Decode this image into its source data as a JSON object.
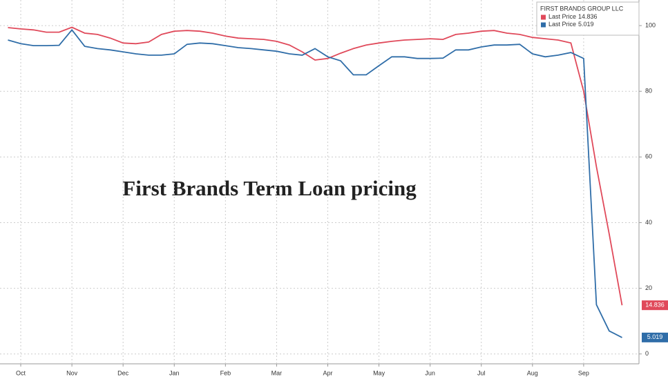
{
  "chart_data": {
    "type": "line",
    "annotation": "First Brands Term Loan pricing",
    "legend_title": "FIRST BRANDS GROUP LLC",
    "legend": "top-right",
    "grid": true,
    "categories": [
      null,
      "Oct",
      null,
      null,
      null,
      "Nov",
      null,
      null,
      null,
      "Dec",
      null,
      null,
      null,
      "Jan",
      null,
      null,
      null,
      "Feb",
      null,
      null,
      null,
      "Mar",
      null,
      null,
      null,
      "Apr",
      null,
      null,
      null,
      "May",
      null,
      null,
      null,
      "Jun",
      null,
      null,
      null,
      "Jul",
      null,
      null,
      null,
      "Aug",
      null,
      null,
      null,
      "Sep",
      null,
      null,
      null
    ],
    "ylim": [
      -3,
      107.8
    ],
    "yticks": [
      0,
      20,
      40,
      60,
      80,
      100
    ],
    "series": [
      {
        "name": "Last Price",
        "color": "#e0495a",
        "values": [
          99.4,
          99,
          98.7,
          98,
          98,
          99.5,
          97.7,
          97.3,
          96.2,
          94.7,
          94.5,
          95,
          97.3,
          98.3,
          98.5,
          98.3,
          97.7,
          96.8,
          96.2,
          96,
          95.8,
          95.2,
          94.1,
          92,
          89.5,
          90,
          91.6,
          93,
          94.1,
          94.7,
          95.2,
          95.6,
          95.8,
          96,
          95.8,
          97.3,
          97.7,
          98.3,
          98.5,
          97.7,
          97.3,
          96.4,
          96,
          95.6,
          94.7,
          80,
          57,
          36.5,
          14.836
        ]
      },
      {
        "name": "Last Price",
        "color": "#2f6da8",
        "values": [
          95.6,
          94.5,
          93.9,
          93.9,
          94,
          98.7,
          93.7,
          93,
          92.6,
          92,
          91.4,
          91,
          91,
          91.4,
          94.3,
          94.7,
          94.5,
          93.9,
          93.3,
          93,
          92.6,
          92.2,
          91.4,
          91,
          93,
          90.5,
          89.3,
          85,
          85,
          87.8,
          90.5,
          90.5,
          90,
          90,
          90.1,
          92.6,
          92.6,
          93.5,
          94.1,
          94.1,
          94.3,
          91.4,
          90.5,
          91,
          91.8,
          90,
          15,
          7,
          5.019
        ]
      }
    ]
  }
}
